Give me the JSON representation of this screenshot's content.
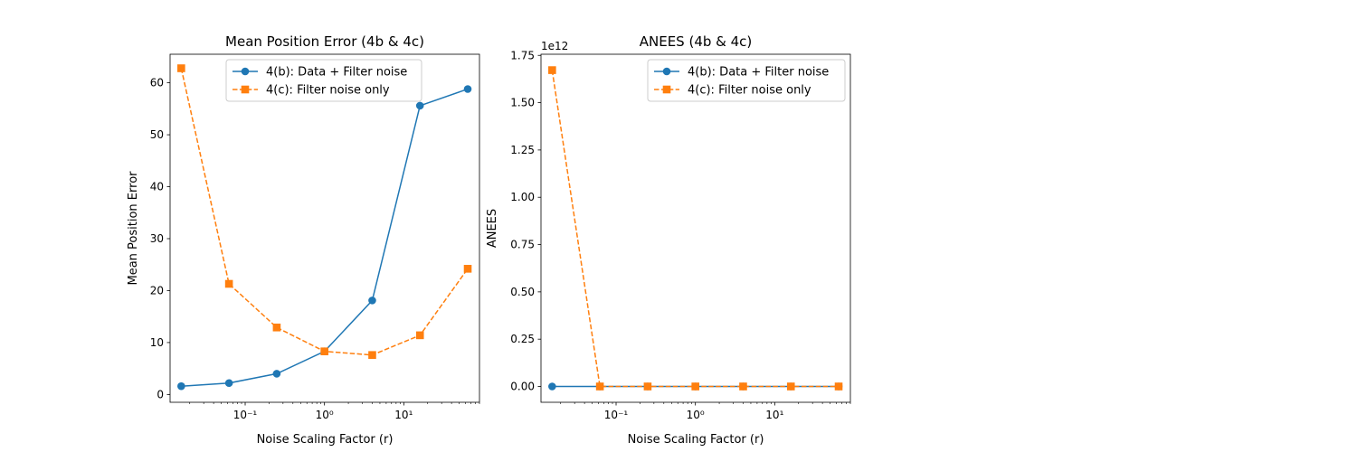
{
  "chart_data": [
    {
      "type": "line",
      "title": "Mean Position Error (4b & 4c)",
      "xlabel": "Noise Scaling Factor (r)",
      "ylabel": "Mean Position Error",
      "xscale": "log",
      "xlim": [
        0.0113,
        90
      ],
      "ylim": [
        -1.5,
        65.5
      ],
      "xticks": [
        {
          "value": 0.1,
          "label": "10⁻¹"
        },
        {
          "value": 1,
          "label": "10⁰"
        },
        {
          "value": 10,
          "label": "10¹"
        }
      ],
      "yticks": [
        0,
        10,
        20,
        30,
        40,
        50,
        60
      ],
      "ytick_labels": [
        "0",
        "10",
        "20",
        "30",
        "40",
        "50",
        "60"
      ],
      "y_offset_label": "",
      "legend_position": "upper-center",
      "x": [
        0.015625,
        0.0625,
        0.25,
        1,
        4,
        16,
        64
      ],
      "series": [
        {
          "name": "4(b): Data + Filter noise",
          "color": "#1f77b4",
          "marker": "circle",
          "linestyle": "solid",
          "values": [
            1.6,
            2.2,
            4.0,
            8.3,
            18.1,
            55.6,
            58.8
          ]
        },
        {
          "name": "4(c): Filter noise only",
          "color": "#ff7f0e",
          "marker": "square",
          "linestyle": "dashed",
          "values": [
            62.8,
            21.3,
            12.9,
            8.3,
            7.6,
            11.4,
            24.2
          ]
        }
      ]
    },
    {
      "type": "line",
      "title": "ANEES (4b & 4c)",
      "xlabel": "Noise Scaling Factor (r)",
      "ylabel": "ANEES",
      "xscale": "log",
      "xlim": [
        0.0113,
        90
      ],
      "ylim": [
        -0.0836,
        1.756
      ],
      "xticks": [
        {
          "value": 0.1,
          "label": "10⁻¹"
        },
        {
          "value": 1,
          "label": "10⁰"
        },
        {
          "value": 10,
          "label": "10¹"
        }
      ],
      "yticks": [
        0,
        0.25,
        0.5,
        0.75,
        1.0,
        1.25,
        1.5,
        1.75
      ],
      "ytick_labels": [
        "0.00",
        "0.25",
        "0.50",
        "0.75",
        "1.00",
        "1.25",
        "1.50",
        "1.75"
      ],
      "y_offset_label": "1e12",
      "legend_position": "upper-right",
      "x": [
        0.015625,
        0.0625,
        0.25,
        1,
        4,
        16,
        64
      ],
      "series": [
        {
          "name": "4(b): Data + Filter noise",
          "color": "#1f77b4",
          "marker": "circle",
          "linestyle": "solid",
          "values": [
            0,
            0,
            0,
            0,
            0,
            0,
            0
          ]
        },
        {
          "name": "4(c): Filter noise only",
          "color": "#ff7f0e",
          "marker": "square",
          "linestyle": "dashed",
          "values": [
            1.672,
            0,
            0,
            0,
            0,
            0,
            0
          ]
        }
      ]
    }
  ]
}
